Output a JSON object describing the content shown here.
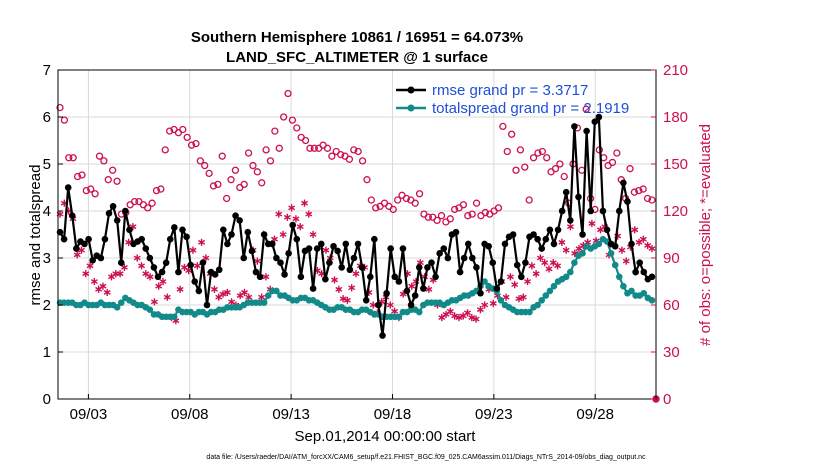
{
  "chart_data": {
    "type": "line",
    "title_line1": "Southern Hemisphere 10861 / 16951 = 64.073%",
    "title_line2": "LAND_SFC_ALTIMETER @ 1 surface",
    "xlabel": "Sep.01,2014 00:00:00 start",
    "ylabel": "rmse and totalspread",
    "y2label": "# of obs: o=possible; *=evaluated",
    "footnote": "data file: /Users/raeder/DAI/ATM_forcXX/CAM6_setup/f.e21.FHIST_BGC.f09_025.CAM6assim.011/Diags_NTrS_2014-09/obs_diag_output.nc",
    "xlim": [
      1.5,
      31.0
    ],
    "ylim": [
      0,
      7
    ],
    "y2lim": [
      0,
      210
    ],
    "xticks": [
      3,
      8,
      13,
      18,
      23,
      28
    ],
    "xtick_labels": [
      "09/03",
      "09/08",
      "09/13",
      "09/18",
      "09/23",
      "09/28"
    ],
    "yticks": [
      0,
      1,
      2,
      3,
      4,
      5,
      6,
      7
    ],
    "ytick_labels": [
      "0",
      "1",
      "2",
      "3",
      "4",
      "5",
      "6",
      "7"
    ],
    "y2ticks": [
      0,
      30,
      60,
      90,
      120,
      150,
      180,
      210
    ],
    "y2tick_labels": [
      "0",
      "30",
      "60",
      "90",
      "120",
      "150",
      "180",
      "210"
    ],
    "legend": [
      "rmse grand pr = 3.3717",
      "totalspread grand pr = 2.1919"
    ],
    "colors": {
      "rmse": "#000000",
      "spread": "#138a8a",
      "obs": "#cc0f52",
      "grid": "#d9d9d9",
      "legend_text": "#1f4fd8"
    },
    "series": [
      {
        "name": "rmse",
        "values": [
          3.55,
          3.4,
          4.5,
          3.9,
          3.2,
          3.35,
          3.3,
          3.4,
          2.95,
          3.05,
          3.0,
          3.4,
          3.95,
          4.1,
          3.8,
          2.9,
          4.0,
          3.6,
          3.3,
          3.35,
          3.4,
          3.2,
          3.0,
          2.8,
          2.6,
          2.7,
          2.9,
          3.4,
          3.65,
          2.7,
          3.6,
          3.45,
          2.85,
          2.5,
          2.3,
          2.9,
          2.0,
          2.7,
          2.65,
          2.75,
          3.6,
          3.3,
          3.5,
          3.9,
          3.8,
          3.0,
          3.55,
          3.15,
          2.7,
          2.6,
          3.5,
          3.3,
          3.3,
          3.0,
          2.9,
          2.65,
          3.1,
          3.7,
          3.4,
          2.6,
          3.15,
          3.2,
          2.35,
          3.2,
          3.3,
          2.55,
          2.9,
          3.25,
          3.15,
          2.8,
          3.3,
          2.75,
          3.0,
          3.3,
          2.8,
          2.1,
          2.6,
          3.4,
          2.0,
          1.35,
          2.25,
          3.2,
          2.6,
          2.5,
          3.2,
          2.3,
          2.0,
          2.2,
          2.8,
          2.35,
          2.8,
          2.9,
          2.6,
          3.1,
          3.2,
          3.0,
          3.5,
          3.55,
          2.7,
          3.0,
          3.3,
          3.0,
          2.8,
          2.25,
          3.3,
          3.25,
          2.9,
          2.35,
          2.5,
          3.3,
          3.45,
          3.5,
          2.85,
          2.6,
          2.9,
          3.45,
          3.5,
          3.4,
          3.2,
          3.4,
          3.6,
          3.3,
          3.6,
          4.0,
          4.4,
          3.8,
          5.8,
          4.3,
          3.5,
          5.7,
          4.0,
          5.9,
          6.0,
          4.0,
          3.6,
          3.3,
          3.25,
          4.0,
          4.6,
          4.2,
          3.3,
          2.7,
          2.9,
          2.7,
          2.55,
          2.6
        ]
      },
      {
        "name": "totalspread",
        "values": [
          2.05,
          2.05,
          2.05,
          2.05,
          2.0,
          2.0,
          2.05,
          2.0,
          2.0,
          2.0,
          2.05,
          2.0,
          2.0,
          2.0,
          1.95,
          2.05,
          2.15,
          2.1,
          2.05,
          2.0,
          2.0,
          1.95,
          1.9,
          1.8,
          1.8,
          1.75,
          1.75,
          1.75,
          1.75,
          1.9,
          1.85,
          1.85,
          1.85,
          1.8,
          1.85,
          1.85,
          1.8,
          1.85,
          1.85,
          1.9,
          1.9,
          1.95,
          1.95,
          1.95,
          1.95,
          2.0,
          2.05,
          2.05,
          2.05,
          2.05,
          2.05,
          2.2,
          2.3,
          2.3,
          2.2,
          2.2,
          2.15,
          2.1,
          2.1,
          2.15,
          2.15,
          2.1,
          2.1,
          2.05,
          2.0,
          1.95,
          1.9,
          1.9,
          1.95,
          1.95,
          1.9,
          1.9,
          1.85,
          1.85,
          1.9,
          1.9,
          1.85,
          1.8,
          1.8,
          1.75,
          1.75,
          1.75,
          1.75,
          1.75,
          1.85,
          1.85,
          1.9,
          1.9,
          1.85,
          2.0,
          2.05,
          2.05,
          2.05,
          2.05,
          2.0,
          2.05,
          2.1,
          2.1,
          2.15,
          2.2,
          2.2,
          2.25,
          2.3,
          2.4,
          2.5,
          2.4,
          2.35,
          2.3,
          2.1,
          2.0,
          1.95,
          1.9,
          1.85,
          1.85,
          1.85,
          1.85,
          1.95,
          2.0,
          2.1,
          2.2,
          2.3,
          2.4,
          2.5,
          2.55,
          2.6,
          2.7,
          2.9,
          3.05,
          3.1,
          3.25,
          3.2,
          3.25,
          3.3,
          3.4,
          3.35,
          3.1,
          2.85,
          2.6,
          2.4,
          2.25,
          2.3,
          2.2,
          2.2,
          2.25,
          2.15,
          2.1
        ]
      },
      {
        "name": "obs_possible",
        "values": [
          186,
          178,
          154,
          154,
          142,
          143,
          133,
          134,
          131,
          155,
          152,
          140,
          146,
          139,
          118,
          119,
          124,
          126,
          126,
          124,
          122,
          125,
          133,
          134,
          159,
          171,
          172,
          170,
          172,
          167,
          162,
          163,
          152,
          149,
          144,
          136,
          137,
          155,
          128,
          140,
          146,
          135,
          137,
          157,
          149,
          145,
          138,
          159,
          152,
          171,
          160,
          180,
          195,
          178,
          173,
          167,
          165,
          160,
          160,
          160,
          162,
          160,
          155,
          158,
          156,
          155,
          153,
          159,
          158,
          152,
          140,
          127,
          122,
          123,
          125,
          123,
          121,
          127,
          130,
          128,
          127,
          125,
          131,
          118,
          116,
          116,
          114,
          117,
          113,
          115,
          121,
          122,
          124,
          117,
          118,
          125,
          117,
          119,
          118,
          120,
          122,
          174,
          158,
          169,
          146,
          159,
          148,
          127,
          154,
          157,
          158,
          154,
          145,
          147,
          150,
          142,
          125,
          150,
          173,
          146,
          185,
          128,
          121,
          159,
          154,
          149,
          151,
          157,
          140,
          128,
          147,
          132,
          133,
          134,
          128,
          127
        ]
      },
      {
        "name": "obs_evaluated",
        "values": [
          118,
          125,
          120,
          115,
          92,
          95,
          80,
          85,
          75,
          70,
          72,
          68,
          78,
          80,
          80,
          84,
          100,
          110,
          90,
          85,
          80,
          78,
          62,
          72,
          75,
          65,
          52,
          50,
          70,
          84,
          82,
          95,
          85,
          100,
          90,
          80,
          70,
          65,
          67,
          68,
          62,
          60,
          66,
          68,
          65,
          95,
          88,
          65,
          78,
          70,
          102,
          118,
          105,
          116,
          122,
          115,
          110,
          125,
          118,
          105,
          82,
          80,
          95,
          90,
          76,
          70,
          64,
          63,
          71,
          80,
          85,
          84,
          68,
          60,
          55,
          62,
          65,
          60,
          56,
          52,
          67,
          80,
          72,
          75,
          87,
          78,
          70,
          76,
          60,
          52,
          54,
          56,
          53,
          52,
          53,
          55,
          52,
          51,
          57,
          60,
          70,
          61,
          66,
          75,
          65,
          78,
          73,
          64,
          65,
          75,
          85,
          80,
          90,
          87,
          83,
          87,
          85,
          100,
          95,
          110,
          93,
          96,
          98,
          100,
          112,
          101,
          108,
          110,
          92,
          98,
          104,
          95,
          88,
          97,
          108,
          100,
          102,
          98,
          96
        ]
      }
    ]
  }
}
